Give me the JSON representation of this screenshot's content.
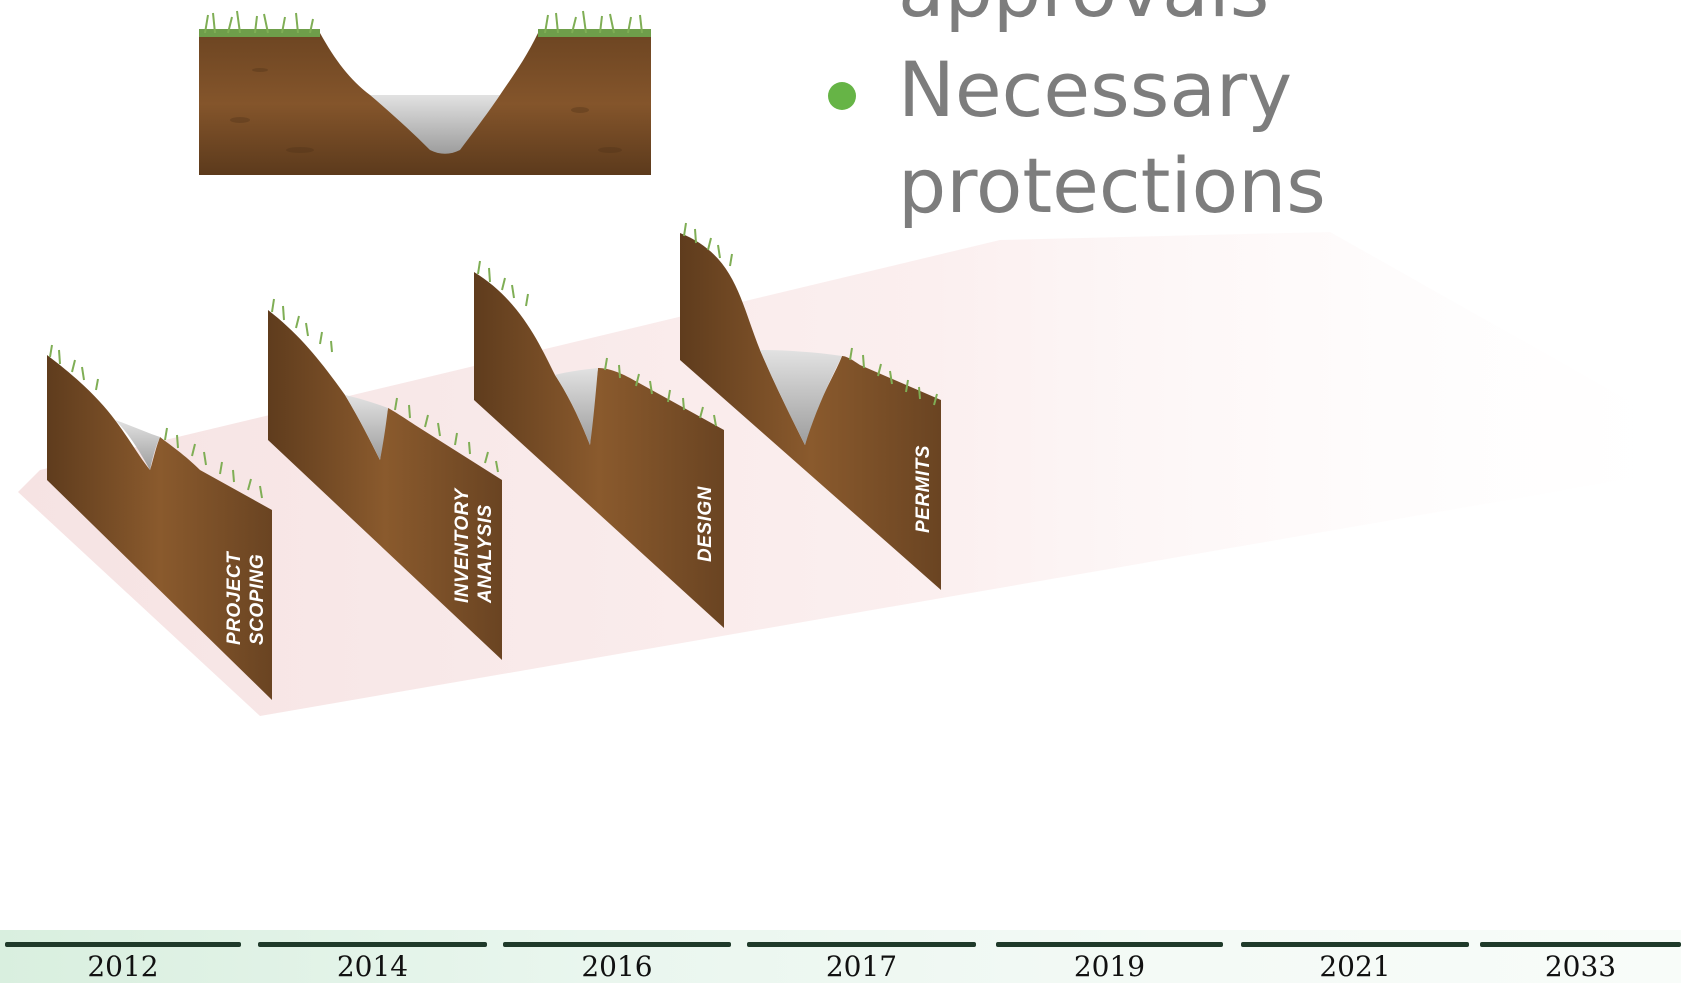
{
  "bullets": [
    {
      "lines": [
        "approvals"
      ],
      "show_bullet": false
    },
    {
      "lines": [
        "Necessary",
        "protections"
      ],
      "show_bullet": true
    }
  ],
  "stages": [
    {
      "lines": [
        "PROJECT",
        "SCOPING"
      ]
    },
    {
      "lines": [
        "INVENTORY",
        "ANALYSIS"
      ]
    },
    {
      "lines": [
        "DESIGN"
      ]
    },
    {
      "lines": [
        "PERMITS"
      ]
    }
  ],
  "timeline": {
    "years": [
      "2012",
      "2014",
      "2016",
      "2017",
      "2019",
      "2021",
      "2033"
    ]
  },
  "colors": {
    "soil_dark": "#5b3a1e",
    "soil_mid": "#7a4f27",
    "soil_light": "#94622f",
    "grass": "#6e9e4a",
    "water": "#b9b9b9",
    "ground_plane": "#f7e6e6",
    "bullet_dot": "#66b446",
    "bullet_text": "#7d7d7d",
    "timeline_bar": "#1f3a2a"
  }
}
